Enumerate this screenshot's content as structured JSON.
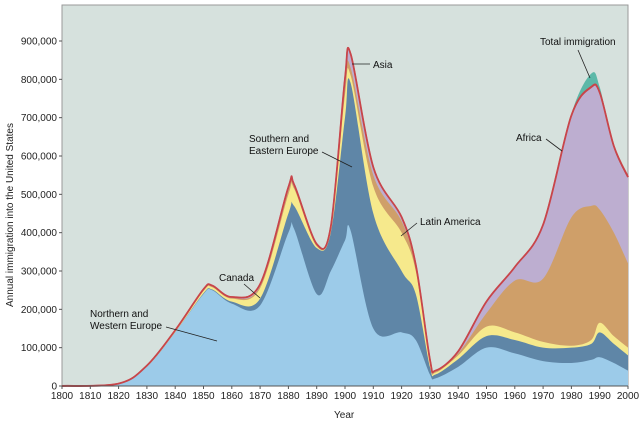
{
  "chart_data": {
    "type": "area",
    "stacked": true,
    "title": "",
    "xlabel": "Year",
    "ylabel": "Annual immigration into the United States",
    "xlim": [
      1800,
      2000
    ],
    "ylim": [
      0,
      980000
    ],
    "grid": false,
    "legend": "none (inline annotations)",
    "x_ticks": [
      "1800",
      "1810",
      "1820",
      "1830",
      "1840",
      "1850",
      "1860",
      "1870",
      "1880",
      "1890",
      "1900",
      "1910",
      "1920",
      "1930",
      "1940",
      "1950",
      "1960",
      "1970",
      "1980",
      "1990",
      "2000"
    ],
    "y_ticks": [
      "0",
      "100,000",
      "200,000",
      "300,000",
      "400,000",
      "500,000",
      "600,000",
      "700,000",
      "800,000",
      "900,000"
    ],
    "x": [
      1800,
      1820,
      1830,
      1840,
      1850,
      1853,
      1860,
      1870,
      1880,
      1882,
      1890,
      1895,
      1900,
      1902,
      1910,
      1920,
      1925,
      1930,
      1932,
      1940,
      1950,
      1960,
      1970,
      1980,
      1987,
      1990,
      1995,
      2000
    ],
    "series": [
      {
        "name": "Northern and Western Europe",
        "color": "#9ccbe9",
        "values": [
          0,
          5000,
          50000,
          140000,
          240000,
          250000,
          215000,
          210000,
          400000,
          410000,
          240000,
          300000,
          380000,
          405000,
          150000,
          140000,
          120000,
          30000,
          20000,
          50000,
          100000,
          85000,
          65000,
          60000,
          68000,
          75000,
          60000,
          40000
        ]
      },
      {
        "name": "Southern and Eastern Europe",
        "color": "#5f86a7",
        "values": [
          0,
          0,
          0,
          0,
          2000,
          2000,
          5000,
          18000,
          50000,
          60000,
          120000,
          100000,
          320000,
          385000,
          300000,
          160000,
          120000,
          20000,
          10000,
          20000,
          30000,
          35000,
          35000,
          40000,
          42000,
          65000,
          50000,
          40000
        ]
      },
      {
        "name": "Canada",
        "color": "#f6e98c",
        "values": [
          0,
          0,
          1000,
          2000,
          6000,
          6000,
          8000,
          27000,
          50000,
          45000,
          5000,
          10000,
          60000,
          20000,
          70000,
          100000,
          60000,
          10000,
          5000,
          10000,
          25000,
          20000,
          15000,
          5000,
          10000,
          25000,
          20000,
          20000
        ]
      },
      {
        "name": "Latin America",
        "color": "#cf9f69",
        "values": [
          0,
          0,
          1000,
          1000,
          2000,
          2000,
          2000,
          5000,
          10000,
          5000,
          3000,
          2000,
          20000,
          20000,
          30000,
          30000,
          10000,
          5000,
          3000,
          5000,
          35000,
          135000,
          165000,
          335000,
          350000,
          295000,
          270000,
          220000
        ]
      },
      {
        "name": "Asia",
        "color": "#bdaed0",
        "values": [
          0,
          1000,
          1000,
          2000,
          2000,
          2000,
          2000,
          5000,
          8000,
          5000,
          2000,
          3000,
          20000,
          35000,
          20000,
          10000,
          5000,
          3000,
          2000,
          5000,
          30000,
          35000,
          140000,
          260000,
          305000,
          300000,
          220000,
          220000
        ]
      },
      {
        "name": "Africa",
        "color": "#c8454a",
        "values": [
          0,
          0,
          0,
          0,
          0,
          0,
          0,
          0,
          0,
          0,
          0,
          0,
          0,
          0,
          0,
          0,
          0,
          0,
          0,
          0,
          0,
          0,
          0,
          5000,
          5000,
          5000,
          5000,
          5000
        ]
      },
      {
        "name": "Total immigration",
        "color": "#5cb8a8",
        "values": [
          0,
          0,
          0,
          0,
          0,
          0,
          0,
          0,
          0,
          0,
          0,
          0,
          0,
          0,
          0,
          0,
          0,
          0,
          0,
          0,
          0,
          0,
          0,
          5000,
          35000,
          15000,
          0,
          0
        ]
      }
    ],
    "annotations": {
      "nw_europe": [
        "Northern and",
        "Western Europe"
      ],
      "se_europe": [
        "Southern and",
        "Eastern Europe"
      ],
      "canada": "Canada",
      "latin_america": "Latin America",
      "asia": "Asia",
      "africa": "Africa",
      "total": "Total immigration"
    },
    "background": "#d6e1dd"
  }
}
